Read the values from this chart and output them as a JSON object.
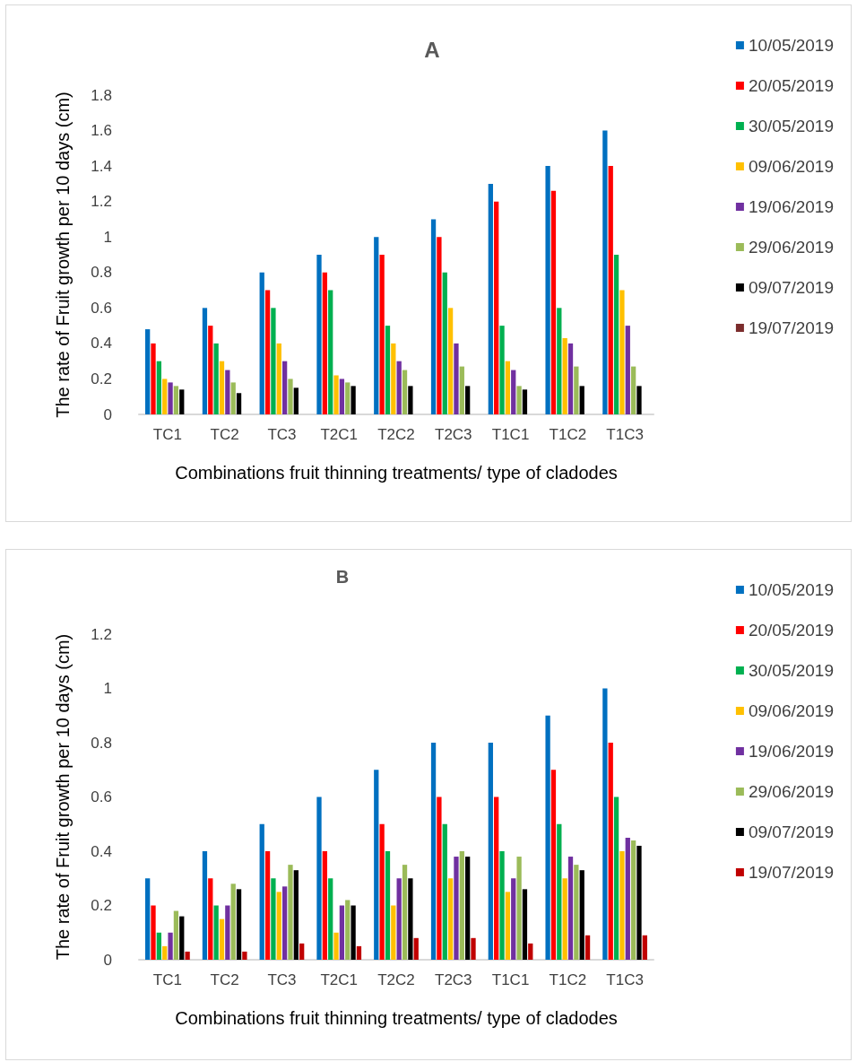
{
  "chart_data": [
    {
      "type": "bar",
      "title": "A",
      "xlabel": "Combinations fruit thinning treatments/ type of cladodes",
      "ylabel": "The rate of Fruit growth per 10 days (cm)",
      "categories": [
        "TC1",
        "TC2",
        "TC3",
        "T2C1",
        "T2C2",
        "T2C3",
        "T1C1",
        "T1C2",
        "T1C3"
      ],
      "series": [
        {
          "name": "10/05/2019",
          "color": "#0070c0",
          "values": [
            0.48,
            0.6,
            0.8,
            0.9,
            1.0,
            1.1,
            1.3,
            1.4,
            1.6
          ]
        },
        {
          "name": "20/05/2019",
          "color": "#ff0000",
          "values": [
            0.4,
            0.5,
            0.7,
            0.8,
            0.9,
            1.0,
            1.2,
            1.26,
            1.4
          ]
        },
        {
          "name": "30/05/2019",
          "color": "#00b050",
          "values": [
            0.3,
            0.4,
            0.6,
            0.7,
            0.5,
            0.8,
            0.5,
            0.6,
            0.9
          ]
        },
        {
          "name": "09/06/2019",
          "color": "#ffc000",
          "values": [
            0.2,
            0.3,
            0.4,
            0.22,
            0.4,
            0.6,
            0.3,
            0.43,
            0.7
          ]
        },
        {
          "name": "19/06/2019",
          "color": "#7030a0",
          "values": [
            0.18,
            0.25,
            0.3,
            0.2,
            0.3,
            0.4,
            0.25,
            0.4,
            0.5
          ]
        },
        {
          "name": "29/06/2019",
          "color": "#9bbb59",
          "values": [
            0.16,
            0.18,
            0.2,
            0.18,
            0.25,
            0.27,
            0.16,
            0.27,
            0.27
          ]
        },
        {
          "name": "09/07/2019",
          "color": "#000000",
          "values": [
            0.14,
            0.12,
            0.15,
            0.16,
            0.16,
            0.16,
            0.14,
            0.16,
            0.16
          ]
        },
        {
          "name": "19/07/2019",
          "color": "#7b2c2c",
          "values": [
            null,
            null,
            null,
            null,
            null,
            null,
            null,
            null,
            null
          ]
        }
      ],
      "ylim": [
        0,
        1.8
      ],
      "yticks": [
        0,
        0.2,
        0.4,
        0.6,
        0.8,
        1,
        1.2,
        1.4,
        1.6,
        1.8
      ],
      "grid": false,
      "legend": "right"
    },
    {
      "type": "bar",
      "title": "B",
      "xlabel": "Combinations fruit thinning treatments/ type of cladodes",
      "ylabel": "The rate of Fruit growth per 10 days (cm)",
      "categories": [
        "TC1",
        "TC2",
        "TC3",
        "T2C1",
        "T2C2",
        "T2C3",
        "T1C1",
        "T1C2",
        "T1C3"
      ],
      "series": [
        {
          "name": "10/05/2019",
          "color": "#0070c0",
          "values": [
            0.3,
            0.4,
            0.5,
            0.6,
            0.7,
            0.8,
            0.8,
            0.9,
            1.0
          ]
        },
        {
          "name": "20/05/2019",
          "color": "#ff0000",
          "values": [
            0.2,
            0.3,
            0.4,
            0.4,
            0.5,
            0.6,
            0.6,
            0.7,
            0.8
          ]
        },
        {
          "name": "30/05/2019",
          "color": "#00b050",
          "values": [
            0.1,
            0.2,
            0.3,
            0.3,
            0.4,
            0.5,
            0.4,
            0.5,
            0.6
          ]
        },
        {
          "name": "09/06/2019",
          "color": "#ffc000",
          "values": [
            0.05,
            0.15,
            0.25,
            0.1,
            0.2,
            0.3,
            0.25,
            0.3,
            0.4
          ]
        },
        {
          "name": "19/06/2019",
          "color": "#7030a0",
          "values": [
            0.1,
            0.2,
            0.27,
            0.2,
            0.3,
            0.38,
            0.3,
            0.38,
            0.45
          ]
        },
        {
          "name": "29/06/2019",
          "color": "#9bbb59",
          "values": [
            0.18,
            0.28,
            0.35,
            0.22,
            0.35,
            0.4,
            0.38,
            0.35,
            0.44
          ]
        },
        {
          "name": "09/07/2019",
          "color": "#000000",
          "values": [
            0.16,
            0.26,
            0.33,
            0.2,
            0.3,
            0.38,
            0.26,
            0.33,
            0.42
          ]
        },
        {
          "name": "19/07/2019",
          "color": "#c00000",
          "values": [
            0.03,
            0.03,
            0.06,
            0.05,
            0.08,
            0.08,
            0.06,
            0.09,
            0.09
          ]
        }
      ],
      "ylim": [
        0,
        1.2
      ],
      "yticks": [
        0,
        0.2,
        0.4,
        0.6,
        0.8,
        1,
        1.2
      ],
      "grid": false,
      "legend": "right"
    }
  ]
}
